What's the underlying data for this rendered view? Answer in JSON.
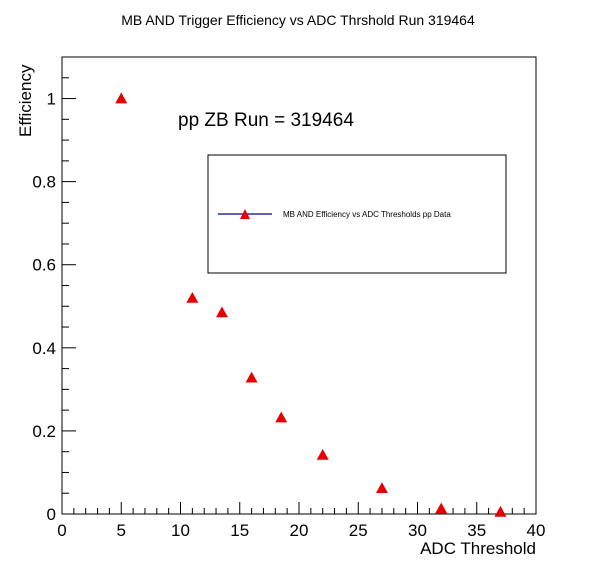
{
  "chart_data": {
    "type": "scatter",
    "title": "MB AND Trigger Efficiency vs ADC Thrshold Run 319464",
    "xlabel": "ADC Threshold",
    "ylabel": "Efficiency",
    "xlim": [
      0,
      40
    ],
    "ylim": [
      0,
      1.1
    ],
    "x_ticks": [
      "0",
      "5",
      "10",
      "15",
      "20",
      "25",
      "30",
      "35",
      "40"
    ],
    "y_ticks": [
      "0",
      "0.2",
      "0.4",
      "0.6",
      "0.8",
      "1"
    ],
    "annotation": "pp ZB Run = 319464",
    "grid": false,
    "legend_position": "upper-right",
    "marker_color": "#e60000",
    "line_color": "#000080",
    "series": [
      {
        "name": "MB AND Efficiency vs ADC Thresholds pp Data",
        "x": [
          5,
          11,
          13.5,
          16,
          18.5,
          22,
          27,
          32,
          37
        ],
        "y": [
          1.0,
          0.52,
          0.485,
          0.328,
          0.232,
          0.142,
          0.062,
          0.013,
          0.005
        ]
      }
    ]
  }
}
